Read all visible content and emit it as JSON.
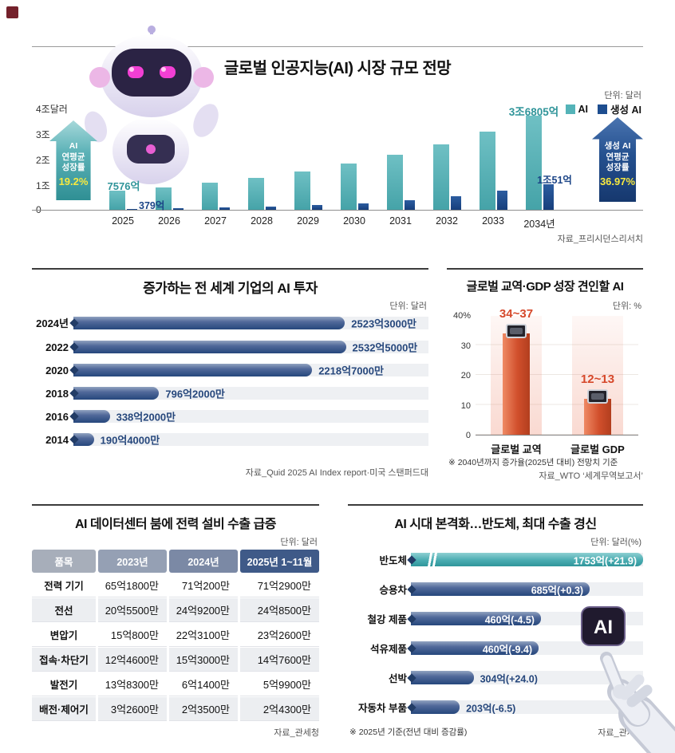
{
  "branding": {
    "logo_color": "#74212b"
  },
  "decorations": {
    "ai_cube_label": "AI"
  },
  "chart_data": [
    {
      "id": "market",
      "type": "bar",
      "title": "글로벌 인공지능(AI) 시장 규모 전망",
      "unit_label": "단위: 달러",
      "legend": [
        {
          "label": "AI",
          "color": "#54b3b8"
        },
        {
          "label": "생성 AI",
          "color": "#1d4d8f"
        }
      ],
      "y_ticks": [
        "4조달러",
        "3조",
        "2조",
        "1조",
        "0"
      ],
      "ylim_100m": [
        0,
        40000
      ],
      "categories": [
        "2025",
        "2026",
        "2027",
        "2028",
        "2029",
        "2030",
        "2031",
        "2032",
        "2033",
        "2034년"
      ],
      "series": [
        {
          "name": "AI",
          "color": "#54b3b8",
          "values_100m": [
            7576,
            8900,
            10600,
            12600,
            15100,
            18000,
            21500,
            25700,
            30700,
            36805
          ]
        },
        {
          "name": "생성 AI",
          "color": "#1d4d8f",
          "values_100m": [
            379,
            560,
            830,
            1220,
            1800,
            2600,
            3800,
            5400,
            7600,
            10051
          ]
        }
      ],
      "callouts": {
        "ai_2025": "7576억",
        "gen_2025": "379억",
        "ai_2034": "3조6805억",
        "gen_2034": "1조51억"
      },
      "cagr_left": {
        "label": "AI\n연평균\n성장률",
        "value": "19.2%"
      },
      "cagr_right": {
        "label": "생성 AI\n연평균\n성장률",
        "value": "36.97%"
      },
      "source": "자료_프리시던스리서치"
    },
    {
      "id": "investment",
      "type": "bar-horizontal",
      "title": "증가하는 전 세계 기업의 AI 투자",
      "unit_label": "단위: 달러",
      "categories": [
        "2024년",
        "2022",
        "2020",
        "2018",
        "2016",
        "2014"
      ],
      "values_100m": [
        2523.3,
        2532.5,
        2218.7,
        796.2,
        338.2,
        190.4
      ],
      "value_labels": [
        "2523억3000만",
        "2532억5000만",
        "2218억7000만",
        "796억2000만",
        "338억2000만",
        "190억4000만"
      ],
      "axis_max_100m": 3300,
      "source": "자료_Quid 2025 AI Index report·미국 스탠퍼드대"
    },
    {
      "id": "trade-gdp",
      "type": "bar",
      "title": "글로벌 교역·GDP 성장 견인할 AI",
      "unit_label": "단위: %",
      "y_ticks": [
        "40%",
        "30",
        "20",
        "10",
        "0"
      ],
      "ylim": [
        0,
        40
      ],
      "categories": [
        "글로벌 교역",
        "글로벌 GDP"
      ],
      "values_low": [
        34,
        12
      ],
      "values_high": [
        37,
        13
      ],
      "value_labels": [
        "34~37",
        "12~13"
      ],
      "note": "※ 2040년까지 증가율(2025년 대비) 전망치 기준",
      "source": "자료_WTO ‘세계무역보고서’"
    },
    {
      "id": "power-export",
      "type": "table",
      "title": "AI 데이터센터 붐에 전력 설비 수출 급증",
      "unit_label": "단위: 달러",
      "columns": [
        "품목",
        "2023년",
        "2024년",
        "2025년 1~11월"
      ],
      "rows": [
        [
          "전력 기기",
          "65억1800만",
          "71억200만",
          "71억2900만"
        ],
        [
          "전선",
          "20억5500만",
          "24억9200만",
          "24억8500만"
        ],
        [
          "변압기",
          "15억800만",
          "22억3100만",
          "23억2600만"
        ],
        [
          "접속·차단기",
          "12억4600만",
          "15억3000만",
          "14억7600만"
        ],
        [
          "발전기",
          "13억8300만",
          "6억1400만",
          "5억9900만"
        ],
        [
          "배전·제어기",
          "3억2600만",
          "2억3500만",
          "2억4300만"
        ]
      ],
      "source": "자료_관세청"
    },
    {
      "id": "export-items",
      "type": "bar-horizontal",
      "title": "AI 시대 본격화…반도체, 최대 수출 경신",
      "unit_label": "단위: 달러(%)",
      "categories": [
        "반도체",
        "승용차",
        "철강 제품",
        "석유제품",
        "선박",
        "자동차 부품"
      ],
      "values_100m": [
        1753,
        685,
        460,
        460,
        304,
        203
      ],
      "value_labels": [
        "1753억(+21.9)",
        "685억(+0.3)",
        "460억(-4.5)",
        "460억(-9.4)",
        "304억(+24.0)",
        "203억(-6.5)"
      ],
      "bar_colors": [
        "teal",
        "navy",
        "navy",
        "navy",
        "navy",
        "navy"
      ],
      "label_inside": [
        true,
        true,
        true,
        true,
        false,
        false
      ],
      "display_width_pct": [
        100,
        77,
        56,
        55,
        27,
        21
      ],
      "axis_break_on_first": true,
      "note": "※ 2025년 기준(전년 대비 증감률)",
      "source": "자료_관세청"
    }
  ]
}
